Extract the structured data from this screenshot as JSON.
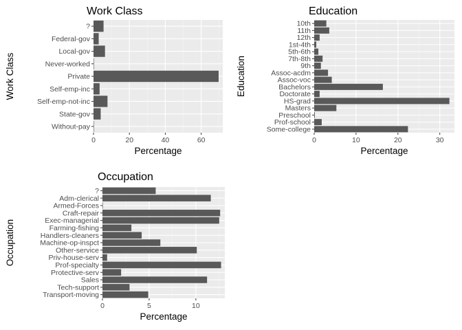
{
  "colors": {
    "panel_bg": "#ebebeb",
    "grid_major": "#ffffff",
    "grid_minor": "#f5f5f5",
    "bar": "#595959",
    "tick_text": "#4d4d4d",
    "text": "#000000"
  },
  "chart_data": [
    {
      "type": "bar",
      "orientation": "horizontal",
      "title": "Work Class",
      "xlabel": "Percentage",
      "ylabel": "Work Class",
      "categories": [
        "?",
        "Federal-gov",
        "Local-gov",
        "Never-worked",
        "Private",
        "Self-emp-inc",
        "Self-emp-not-inc",
        "State-gov",
        "Without-pay"
      ],
      "values": [
        5.6,
        2.9,
        6.4,
        0.02,
        69.7,
        3.4,
        7.8,
        4.0,
        0.04
      ],
      "xlim": [
        0,
        72
      ],
      "xticks": [
        0,
        20,
        40,
        60
      ],
      "grid": true
    },
    {
      "type": "bar",
      "orientation": "horizontal",
      "title": "Education",
      "xlabel": "Percentage",
      "ylabel": "Education",
      "categories": [
        "10th",
        "11th",
        "12th",
        "1st-4th",
        "5th-6th",
        "7th-8th",
        "9th",
        "Assoc-acdm",
        "Assoc-voc",
        "Bachelors",
        "Doctorate",
        "HS-grad",
        "Masters",
        "Preschool",
        "Prof-school",
        "Some-college"
      ],
      "values": [
        2.9,
        3.6,
        1.3,
        0.5,
        1.0,
        2.0,
        1.6,
        3.3,
        4.2,
        16.4,
        1.3,
        32.3,
        5.3,
        0.15,
        1.8,
        22.4
      ],
      "xlim": [
        0,
        33.5
      ],
      "xticks": [
        0,
        10,
        20,
        30
      ],
      "grid": true
    },
    {
      "type": "bar",
      "orientation": "horizontal",
      "title": "Occupation",
      "xlabel": "Percentage",
      "ylabel": "Occupation",
      "categories": [
        "?",
        "Adm-clerical",
        "Armed-Forces",
        "Craft-repair",
        "Exec-managerial",
        "Farming-fishing",
        "Handlers-cleaners",
        "Machine-op-inspct",
        "Other-service",
        "Priv-house-serv",
        "Prof-specialty",
        "Protective-serv",
        "Sales",
        "Tech-support",
        "Transport-moving"
      ],
      "values": [
        5.7,
        11.6,
        0.03,
        12.6,
        12.5,
        3.1,
        4.2,
        6.2,
        10.1,
        0.5,
        12.7,
        2.0,
        11.2,
        2.9,
        4.9
      ],
      "xlim": [
        0,
        13.1
      ],
      "xticks": [
        0,
        5,
        10
      ],
      "grid": true
    }
  ]
}
